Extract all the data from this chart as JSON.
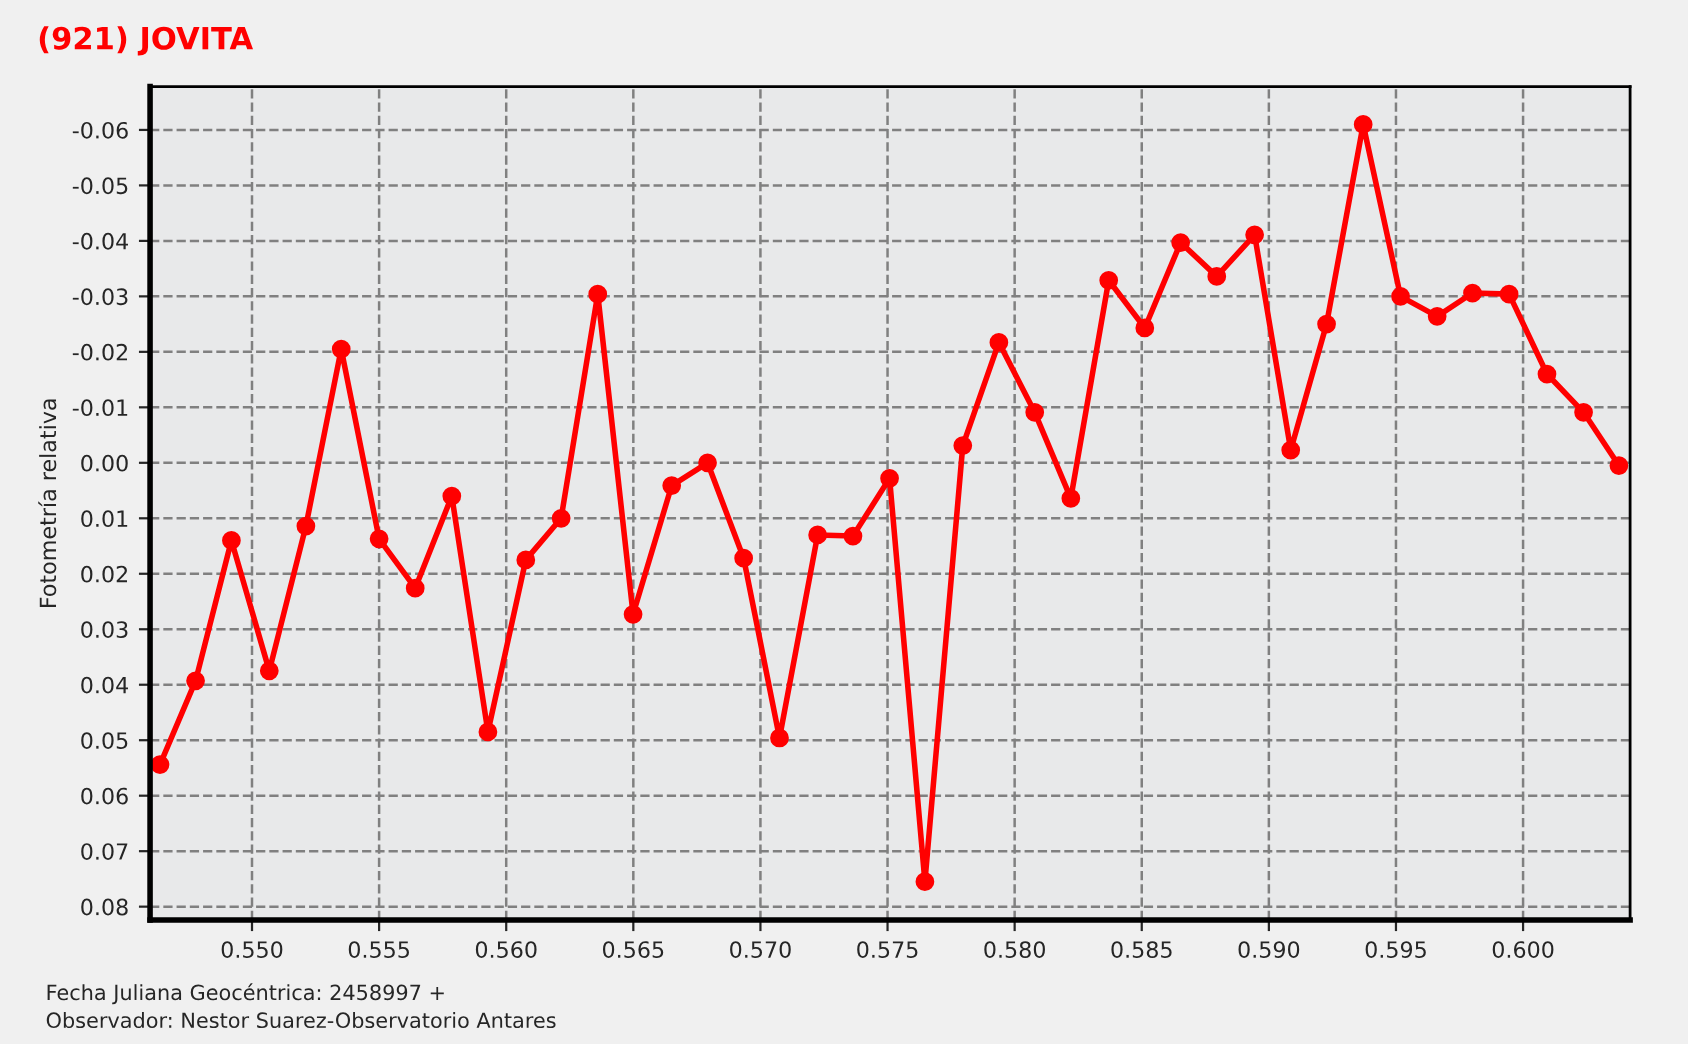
{
  "chart_data": {
    "type": "line",
    "title": "(921) JOVITA",
    "ylabel": "Fotometría relativa",
    "annotations": [
      "Fecha Juliana Geocéntrica: 2458997 +",
      "Observador: Nestor Suarez-Observatorio Antares"
    ],
    "x": [
      0.54638,
      0.54778,
      0.54919,
      0.55068,
      0.55212,
      0.55351,
      0.555,
      0.55642,
      0.55786,
      0.55928,
      0.56077,
      0.56216,
      0.5636,
      0.56499,
      0.56651,
      0.56792,
      0.56934,
      0.57075,
      0.57225,
      0.57364,
      0.57508,
      0.57647,
      0.57796,
      0.57938,
      0.58079,
      0.58221,
      0.5837,
      0.58512,
      0.58653,
      0.58795,
      0.58944,
      0.59086,
      0.59227,
      0.59371,
      0.59518,
      0.59662,
      0.59801,
      0.59945,
      0.60094,
      0.60238,
      0.60377
    ],
    "series": [
      {
        "color": "#ff0000",
        "values": [
          0.0544,
          0.0393,
          0.014,
          0.0375,
          0.0114,
          -0.0205,
          0.0137,
          0.0226,
          0.006,
          0.0485,
          0.0175,
          0.01,
          -0.0304,
          0.0273,
          0.0041,
          0.0,
          0.0172,
          0.0496,
          0.013,
          0.0132,
          0.0028,
          0.0755,
          -0.0031,
          -0.0217,
          -0.0091,
          0.0064,
          -0.0329,
          -0.0243,
          -0.0397,
          -0.0336,
          -0.0411,
          -0.0023,
          -0.025,
          -0.061,
          -0.03,
          -0.0264,
          -0.0306,
          -0.0304,
          -0.016,
          -0.0091,
          0.0005
        ]
      }
    ],
    "xlim": [
      0.54599,
      0.60421
    ],
    "ylim": [
      0.0824,
      -0.0678
    ],
    "xticks": [
      {
        "value": 0.55,
        "label": "0.550"
      },
      {
        "value": 0.555,
        "label": "0.555"
      },
      {
        "value": 0.56,
        "label": "0.560"
      },
      {
        "value": 0.565,
        "label": "0.565"
      },
      {
        "value": 0.57,
        "label": "0.570"
      },
      {
        "value": 0.575,
        "label": "0.575"
      },
      {
        "value": 0.58,
        "label": "0.580"
      },
      {
        "value": 0.585,
        "label": "0.585"
      },
      {
        "value": 0.59,
        "label": "0.590"
      },
      {
        "value": 0.595,
        "label": "0.595"
      },
      {
        "value": 0.6,
        "label": "0.600"
      }
    ],
    "yticks": [
      {
        "value": -0.06,
        "label": "-0.06"
      },
      {
        "value": -0.05,
        "label": "-0.05"
      },
      {
        "value": -0.04,
        "label": "-0.04"
      },
      {
        "value": -0.03,
        "label": "-0.03"
      },
      {
        "value": -0.02,
        "label": "-0.02"
      },
      {
        "value": -0.01,
        "label": "-0.01"
      },
      {
        "value": 0.0,
        "label": "0.00"
      },
      {
        "value": 0.01,
        "label": "0.01"
      },
      {
        "value": 0.02,
        "label": "0.02"
      },
      {
        "value": 0.03,
        "label": "0.03"
      },
      {
        "value": 0.04,
        "label": "0.04"
      },
      {
        "value": 0.05,
        "label": "0.05"
      },
      {
        "value": 0.06,
        "label": "0.06"
      },
      {
        "value": 0.07,
        "label": "0.07"
      },
      {
        "value": 0.08,
        "label": "0.08"
      }
    ],
    "grid": true,
    "legend": false,
    "marker": "circle",
    "line_style": "solid"
  }
}
